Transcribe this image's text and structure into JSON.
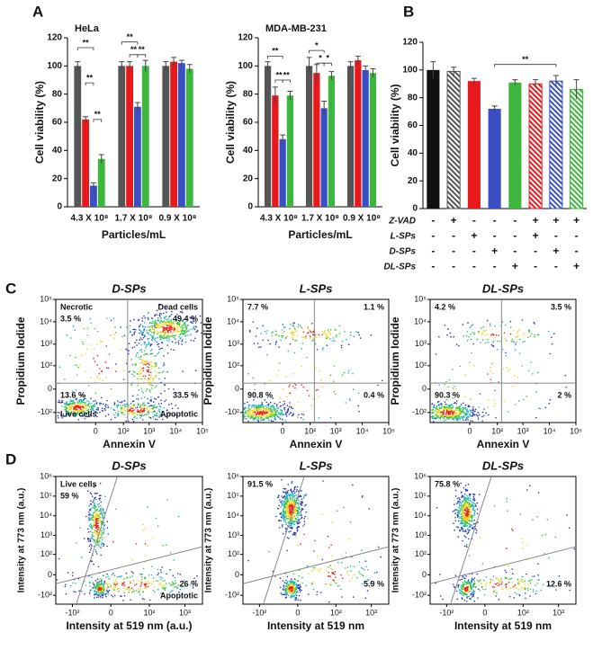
{
  "panel_labels": [
    "A",
    "B",
    "C",
    "D"
  ],
  "chart_data": [
    {
      "type": "bar",
      "title": "HeLa",
      "xlabel": "Particles/mL",
      "ylabel": "Cell viability (%)",
      "categories": [
        "4.3 X 10⁸",
        "1.7 X 10⁸",
        "0.9 X 10⁸"
      ],
      "ylim": [
        0,
        120
      ],
      "yticks": [
        0,
        20,
        40,
        60,
        80,
        100,
        120
      ],
      "series": [
        {
          "color": "#555555",
          "values": [
            100,
            100,
            100
          ],
          "errors": [
            3,
            3,
            3
          ]
        },
        {
          "color": "#e8191c",
          "values": [
            62,
            100,
            103
          ],
          "errors": [
            2,
            3,
            3
          ]
        },
        {
          "color": "#3b4fc4",
          "values": [
            15,
            71,
            102
          ],
          "errors": [
            2,
            3,
            2
          ]
        },
        {
          "color": "#3cb63c",
          "values": [
            34,
            100,
            98
          ],
          "errors": [
            3,
            4,
            3
          ]
        }
      ],
      "annotations": [
        "**",
        "**",
        "**",
        "**",
        "**",
        "**"
      ]
    },
    {
      "type": "bar",
      "title": "MDA-MB-231",
      "xlabel": "Particles/mL",
      "ylabel": "Cell viability (%)",
      "categories": [
        "4.3 X 10⁸",
        "1.7 X 10⁸",
        "0.9 X 10⁸"
      ],
      "ylim": [
        0,
        120
      ],
      "yticks": [
        0,
        20,
        40,
        60,
        80,
        100,
        120
      ],
      "series": [
        {
          "color": "#555555",
          "values": [
            100,
            100,
            100
          ],
          "errors": [
            3,
            6,
            3
          ]
        },
        {
          "color": "#e8191c",
          "values": [
            79,
            95,
            104
          ],
          "errors": [
            6,
            6,
            3
          ]
        },
        {
          "color": "#3b4fc4",
          "values": [
            48,
            70,
            97
          ],
          "errors": [
            3,
            5,
            3
          ]
        },
        {
          "color": "#3cb63c",
          "values": [
            79,
            93,
            95
          ],
          "errors": [
            3,
            3,
            3
          ]
        }
      ],
      "annotations": [
        "**",
        "**",
        "**",
        "*",
        "*",
        "*"
      ]
    },
    {
      "type": "bar",
      "ylabel": "Cell viability (%)",
      "ylim": [
        0,
        120
      ],
      "yticks": [
        0,
        20,
        40,
        60,
        80,
        100,
        120
      ],
      "values": [
        100,
        99,
        92,
        72,
        91,
        90,
        92,
        86
      ],
      "errors": [
        6,
        3,
        2,
        2,
        2,
        3,
        4,
        7
      ],
      "colors": [
        "#111111",
        "#555555",
        "#e8191c",
        "#3b4fc4",
        "#3cb63c",
        "#e8191c",
        "#3b4fc4",
        "#3cb63c"
      ],
      "hatched": [
        false,
        true,
        false,
        false,
        false,
        true,
        true,
        true
      ],
      "annotations": [
        "**"
      ],
      "table": {
        "rows": [
          "Z-VAD",
          "L-SPs",
          "D-SPs",
          "DL-SPs"
        ],
        "cells": [
          [
            "-",
            "+",
            "-",
            "-",
            "-",
            "+",
            "+",
            "+"
          ],
          [
            "-",
            "-",
            "+",
            "-",
            "-",
            "+",
            "-",
            "-"
          ],
          [
            "-",
            "-",
            "-",
            "+",
            "-",
            "-",
            "+",
            "-"
          ],
          [
            "-",
            "-",
            "-",
            "-",
            "+",
            "-",
            "-",
            "+"
          ]
        ]
      }
    },
    {
      "type": "scatter",
      "title": "D-SPs",
      "xlabel": "Annexin V",
      "ylabel": "Propidium Iodide",
      "xlim": [
        -300,
        100000
      ],
      "ylim": [
        -300,
        100000
      ],
      "xticks": [
        0,
        {
          "value": 100,
          "label": "10²"
        },
        {
          "value": 1000,
          "label": "10³"
        },
        {
          "value": 10000,
          "label": "10⁴"
        },
        {
          "value": 100000,
          "label": "10⁵"
        }
      ],
      "yticks": [
        {
          "value": -100,
          "label": "-10²"
        },
        0,
        {
          "value": 100,
          "label": "10²"
        },
        {
          "value": 1000,
          "label": "10³"
        },
        {
          "value": 10000,
          "label": "10⁴"
        },
        {
          "value": 100000,
          "label": "10⁵"
        }
      ],
      "regions": {
        "names": [
          "Necrotic",
          "Dead cells",
          "Live cells",
          "Apoptotic"
        ],
        "values": [
          3.5,
          49.4,
          13.6,
          33.5
        ],
        "value_labels": [
          "3.5 %",
          "49.4 %",
          "13.6 %",
          "33.5 %"
        ]
      }
    },
    {
      "type": "scatter",
      "title": "L-SPs",
      "xlabel": "Annexin V",
      "ylabel": "Propidium Iodide",
      "xlim": [
        -300,
        100000
      ],
      "ylim": [
        -300,
        100000
      ],
      "xticks": [
        0,
        {
          "value": 100,
          "label": "10²"
        },
        {
          "value": 1000,
          "label": "10³"
        },
        {
          "value": 10000,
          "label": "10⁴"
        },
        {
          "value": 100000,
          "label": "10⁵"
        }
      ],
      "yticks": [
        {
          "value": -100,
          "label": "-10²"
        },
        0,
        {
          "value": 100,
          "label": "10²"
        },
        {
          "value": 1000,
          "label": "10³"
        },
        {
          "value": 10000,
          "label": "10⁴"
        },
        {
          "value": 100000,
          "label": "10⁵"
        }
      ],
      "regions": {
        "values": [
          7.7,
          1.1,
          90.8,
          0.4
        ],
        "value_labels": [
          "7.7 %",
          "1.1 %",
          "90.8 %",
          "0.4 %"
        ]
      }
    },
    {
      "type": "scatter",
      "title": "DL-SPs",
      "xlabel": "Annexin V",
      "ylabel": "Propidium Iodide",
      "xlim": [
        -300,
        100000
      ],
      "ylim": [
        -300,
        100000
      ],
      "xticks": [
        0,
        {
          "value": 100,
          "label": "10²"
        },
        {
          "value": 1000,
          "label": "10³"
        },
        {
          "value": 10000,
          "label": "10⁴"
        },
        {
          "value": 100000,
          "label": "10⁵"
        }
      ],
      "yticks": [
        {
          "value": -100,
          "label": "-10²"
        },
        0,
        {
          "value": 100,
          "label": "10²"
        },
        {
          "value": 1000,
          "label": "10³"
        },
        {
          "value": 10000,
          "label": "10⁴"
        },
        {
          "value": 100000,
          "label": "10⁵"
        }
      ],
      "regions": {
        "values": [
          4.2,
          3.5,
          90.3,
          2
        ],
        "value_labels": [
          "4.2 %",
          "3.5 %",
          "90.3 %",
          "2 %"
        ]
      }
    },
    {
      "type": "scatter",
      "title": "D-SPs",
      "xlabel": "Intensity at 519 nm (a.u.)",
      "ylabel": "Intensity at 773 nm (a.u.)",
      "xlim": [
        -300,
        3000
      ],
      "ylim": [
        -300,
        1000000
      ],
      "xticks": [
        {
          "value": -100,
          "label": "-10²"
        },
        0,
        {
          "value": 100,
          "label": "10²"
        },
        {
          "value": 1000,
          "label": "10³"
        }
      ],
      "yticks": [
        {
          "value": -100,
          "label": "-10²"
        },
        0,
        {
          "value": 100,
          "label": "10²"
        },
        {
          "value": 1000,
          "label": "10³"
        },
        {
          "value": 10000,
          "label": "10⁴"
        },
        {
          "value": 100000,
          "label": "10⁵"
        },
        {
          "value": 1000000,
          "label": "10⁶"
        }
      ],
      "regions": {
        "names": [
          "Live cells",
          "Apoptotic"
        ],
        "values": [
          59,
          26
        ],
        "value_labels": [
          "59 %",
          "26 %"
        ]
      }
    },
    {
      "type": "scatter",
      "title": "L-SPs",
      "xlabel": "Intensity at 519 nm",
      "ylabel": "Intensity at 773 nm (a.u.)",
      "xlim": [
        -300,
        3000
      ],
      "ylim": [
        -300,
        1000000
      ],
      "xticks": [
        {
          "value": -100,
          "label": "-10²"
        },
        0,
        {
          "value": 100,
          "label": "10²"
        },
        {
          "value": 1000,
          "label": "10³"
        }
      ],
      "yticks": [
        {
          "value": -100,
          "label": "-10²"
        },
        0,
        {
          "value": 100,
          "label": "10²"
        },
        {
          "value": 1000,
          "label": "10³"
        },
        {
          "value": 10000,
          "label": "10⁴"
        },
        {
          "value": 100000,
          "label": "10⁵"
        },
        {
          "value": 1000000,
          "label": "10⁶"
        }
      ],
      "regions": {
        "values": [
          91.5,
          5.9
        ],
        "value_labels": [
          "91.5 %",
          "5.9 %"
        ]
      }
    },
    {
      "type": "scatter",
      "title": "DL-SPs",
      "xlabel": "Intensity at 519 nm",
      "ylabel": "Intensity at 773 nm (a.u.)",
      "xlim": [
        -300,
        3000
      ],
      "ylim": [
        -300,
        1000000
      ],
      "xticks": [
        {
          "value": -100,
          "label": "-10²"
        },
        0,
        {
          "value": 100,
          "label": "10²"
        },
        {
          "value": 1000,
          "label": "10³"
        }
      ],
      "yticks": [
        {
          "value": -100,
          "label": "-10²"
        },
        0,
        {
          "value": 100,
          "label": "10²"
        },
        {
          "value": 1000,
          "label": "10³"
        },
        {
          "value": 10000,
          "label": "10⁴"
        },
        {
          "value": 100000,
          "label": "10⁵"
        },
        {
          "value": 1000000,
          "label": "10⁶"
        }
      ],
      "regions": {
        "values": [
          75.8,
          12.6
        ],
        "value_labels": [
          "75.8 %",
          "12.6 %"
        ]
      }
    }
  ]
}
